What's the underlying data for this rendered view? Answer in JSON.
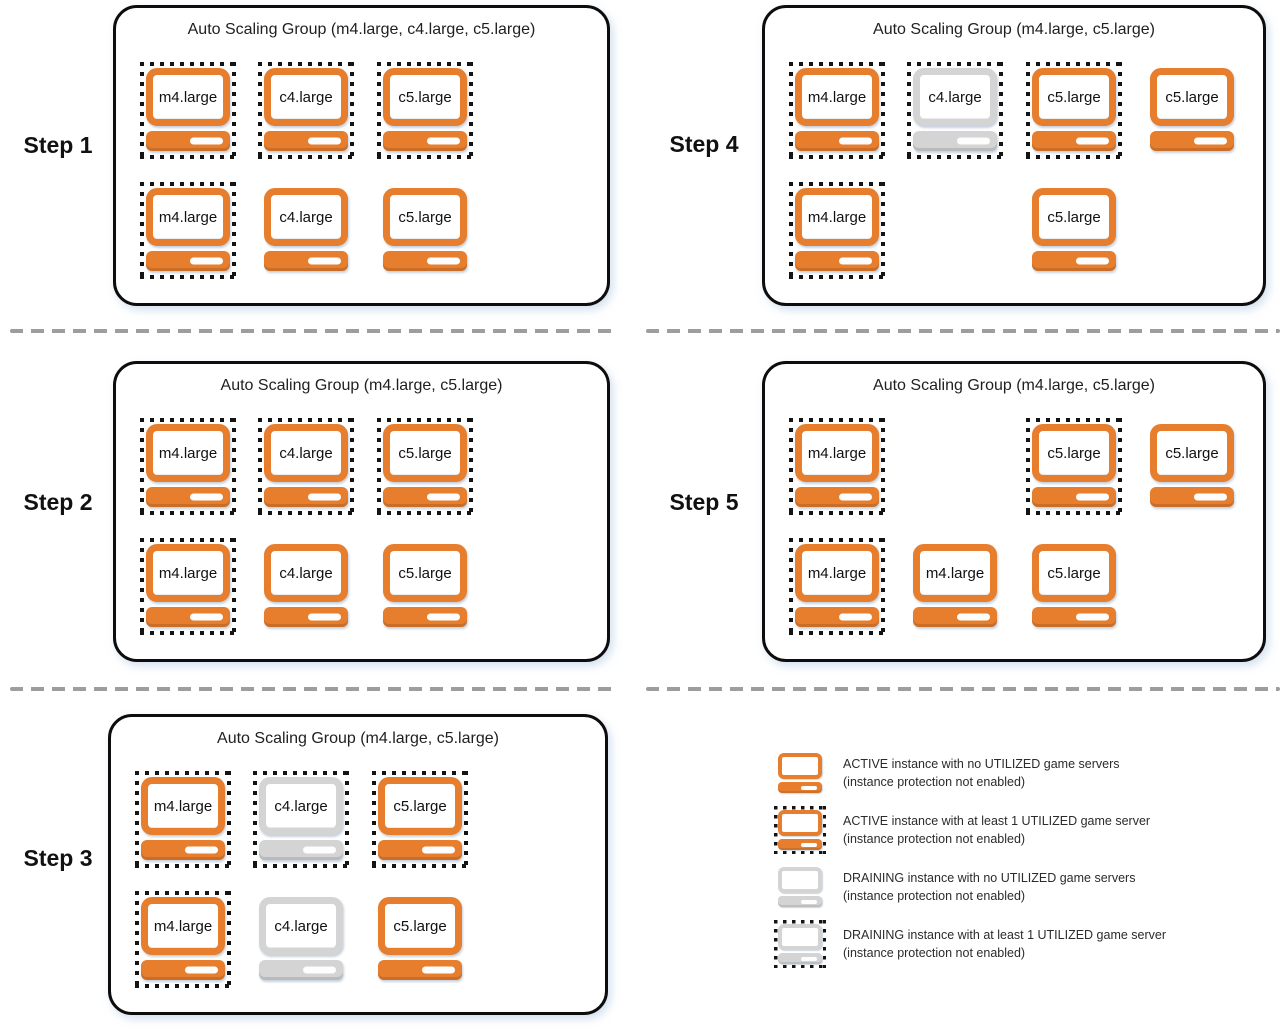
{
  "colors": {
    "active_orange": "#E67E2D",
    "draining_gray": "#D4D4D4",
    "dot_black": "#141414",
    "divider_gray": "#9D9D9D",
    "box_border": "#0D0D0D"
  },
  "steps": [
    {
      "label": "Step 1",
      "title": "Auto Scaling Group (m4.large, c4.large, c5.large)",
      "instances": [
        {
          "type": "m4.large",
          "state": "active",
          "utilized": true,
          "col": 0,
          "row": 0
        },
        {
          "type": "c4.large",
          "state": "active",
          "utilized": true,
          "col": 1,
          "row": 0
        },
        {
          "type": "c5.large",
          "state": "active",
          "utilized": true,
          "col": 2,
          "row": 0
        },
        {
          "type": "m4.large",
          "state": "active",
          "utilized": true,
          "col": 0,
          "row": 1
        },
        {
          "type": "c4.large",
          "state": "active",
          "utilized": false,
          "col": 1,
          "row": 1
        },
        {
          "type": "c5.large",
          "state": "active",
          "utilized": false,
          "col": 2,
          "row": 1
        }
      ]
    },
    {
      "label": "Step 2",
      "title": "Auto Scaling Group (m4.large, c5.large)",
      "instances": [
        {
          "type": "m4.large",
          "state": "active",
          "utilized": true,
          "col": 0,
          "row": 0
        },
        {
          "type": "c4.large",
          "state": "active",
          "utilized": true,
          "col": 1,
          "row": 0
        },
        {
          "type": "c5.large",
          "state": "active",
          "utilized": true,
          "col": 2,
          "row": 0
        },
        {
          "type": "m4.large",
          "state": "active",
          "utilized": true,
          "col": 0,
          "row": 1
        },
        {
          "type": "c4.large",
          "state": "active",
          "utilized": false,
          "col": 1,
          "row": 1
        },
        {
          "type": "c5.large",
          "state": "active",
          "utilized": false,
          "col": 2,
          "row": 1
        }
      ]
    },
    {
      "label": "Step 3",
      "title": "Auto Scaling Group (m4.large, c5.large)",
      "instances": [
        {
          "type": "m4.large",
          "state": "active",
          "utilized": true,
          "col": 0,
          "row": 0
        },
        {
          "type": "c4.large",
          "state": "draining",
          "utilized": true,
          "col": 1,
          "row": 0
        },
        {
          "type": "c5.large",
          "state": "active",
          "utilized": true,
          "col": 2,
          "row": 0
        },
        {
          "type": "m4.large",
          "state": "active",
          "utilized": true,
          "col": 0,
          "row": 1
        },
        {
          "type": "c4.large",
          "state": "draining",
          "utilized": false,
          "col": 1,
          "row": 1
        },
        {
          "type": "c5.large",
          "state": "active",
          "utilized": false,
          "col": 2,
          "row": 1
        }
      ]
    },
    {
      "label": "Step 4",
      "title": "Auto Scaling Group (m4.large, c5.large)",
      "instances": [
        {
          "type": "m4.large",
          "state": "active",
          "utilized": true,
          "col": 0,
          "row": 0
        },
        {
          "type": "c4.large",
          "state": "draining",
          "utilized": true,
          "col": 1,
          "row": 0
        },
        {
          "type": "c5.large",
          "state": "active",
          "utilized": true,
          "col": 2,
          "row": 0
        },
        {
          "type": "c5.large",
          "state": "active",
          "utilized": false,
          "col": 3,
          "row": 0
        },
        {
          "type": "m4.large",
          "state": "active",
          "utilized": true,
          "col": 0,
          "row": 1
        },
        {
          "type": "c5.large",
          "state": "active",
          "utilized": false,
          "col": 2,
          "row": 1
        }
      ]
    },
    {
      "label": "Step 5",
      "title": "Auto Scaling Group (m4.large, c5.large)",
      "instances": [
        {
          "type": "m4.large",
          "state": "active",
          "utilized": true,
          "col": 0,
          "row": 0
        },
        {
          "type": "c5.large",
          "state": "active",
          "utilized": true,
          "col": 2,
          "row": 0
        },
        {
          "type": "c5.large",
          "state": "active",
          "utilized": false,
          "col": 3,
          "row": 0
        },
        {
          "type": "m4.large",
          "state": "active",
          "utilized": true,
          "col": 0,
          "row": 1
        },
        {
          "type": "m4.large",
          "state": "active",
          "utilized": false,
          "col": 1,
          "row": 1
        },
        {
          "type": "c5.large",
          "state": "active",
          "utilized": false,
          "col": 2,
          "row": 1
        }
      ]
    }
  ],
  "legend": {
    "items": [
      {
        "state": "active",
        "utilized": false,
        "line1": "ACTIVE instance with no UTILIZED game servers",
        "line2": "(instance protection not enabled)"
      },
      {
        "state": "active",
        "utilized": true,
        "line1": "ACTIVE instance with at least 1 UTILIZED game server",
        "line2": "(instance protection not enabled)"
      },
      {
        "state": "draining",
        "utilized": false,
        "line1": "DRAINING instance with no UTILIZED game servers",
        "line2": "(instance protection not enabled)"
      },
      {
        "state": "draining",
        "utilized": true,
        "line1": "DRAINING instance with at least 1 UTILIZED game server",
        "line2": "(instance protection not enabled)"
      }
    ]
  }
}
